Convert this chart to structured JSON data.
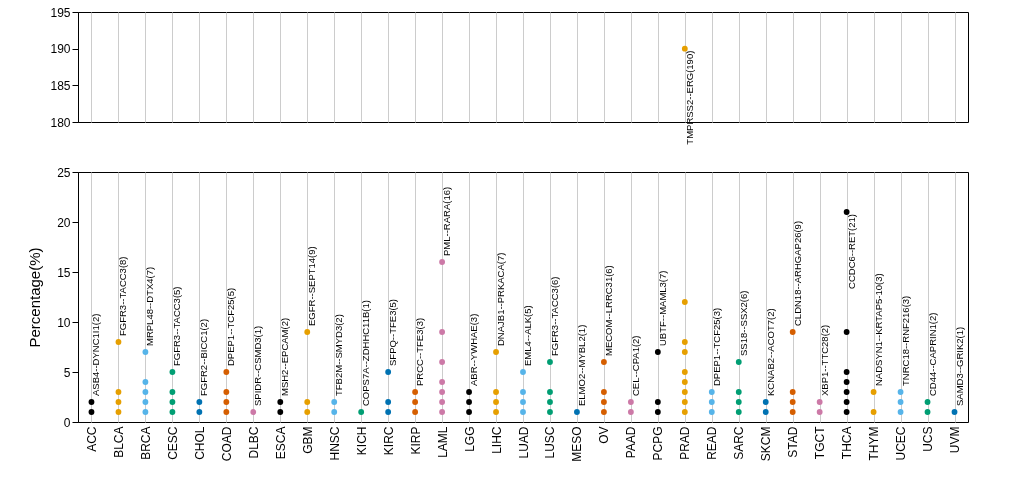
{
  "chart_data": [
    {
      "type": "scatter",
      "categories": [
        "ACC",
        "BLCA",
        "BRCA",
        "CESC",
        "CHOL",
        "COAD",
        "DLBC",
        "ESCA",
        "GBM",
        "HNSC",
        "KICH",
        "KIRC",
        "KIRP",
        "LAML",
        "LGG",
        "LIHC",
        "LUAD",
        "LUSC",
        "MESO",
        "OV",
        "PAAD",
        "PCPG",
        "PRAD",
        "READ",
        "SARC",
        "SKCM",
        "STAD",
        "TGCT",
        "THCA",
        "THYM",
        "UCEC",
        "UCS",
        "UVM"
      ],
      "ylim": [
        180,
        195
      ],
      "yticks": [
        180,
        185,
        190,
        195
      ],
      "grid": "x",
      "marker": "circle",
      "tick_labels": "y",
      "series": [
        {
          "color": "#e69f00",
          "x": [
            "PRAD"
          ],
          "values": [
            190
          ]
        }
      ],
      "annotations": [
        {
          "text": "TMPRSS2--ERG(190)",
          "x": "PRAD",
          "y": 190
        }
      ]
    },
    {
      "type": "scatter",
      "categories": [
        "ACC",
        "BLCA",
        "BRCA",
        "CESC",
        "CHOL",
        "COAD",
        "DLBC",
        "ESCA",
        "GBM",
        "HNSC",
        "KICH",
        "KIRC",
        "KIRP",
        "LAML",
        "LGG",
        "LIHC",
        "LUAD",
        "LUSC",
        "MESO",
        "OV",
        "PAAD",
        "PCPG",
        "PRAD",
        "READ",
        "SARC",
        "SKCM",
        "STAD",
        "TGCT",
        "THCA",
        "THYM",
        "UCEC",
        "UCS",
        "UVM"
      ],
      "ylabel": "Percentage(%)",
      "ylim": [
        0,
        25
      ],
      "yticks": [
        0,
        5,
        10,
        15,
        20,
        25
      ],
      "grid": "x",
      "marker": "circle",
      "series": [
        {
          "color": "#000000",
          "x": [
            "ACC",
            "ACC"
          ],
          "values": [
            1,
            2
          ]
        },
        {
          "color": "#e69f00",
          "x": [
            "BLCA",
            "BLCA",
            "BLCA",
            "BLCA"
          ],
          "values": [
            1,
            2,
            3,
            8
          ]
        },
        {
          "color": "#56b4e9",
          "x": [
            "BRCA",
            "BRCA",
            "BRCA",
            "BRCA",
            "BRCA"
          ],
          "values": [
            1,
            2,
            3,
            4,
            7
          ]
        },
        {
          "color": "#009e73",
          "x": [
            "CESC",
            "CESC",
            "CESC",
            "CESC"
          ],
          "values": [
            1,
            2,
            3,
            5
          ]
        },
        {
          "color": "#0072b2",
          "x": [
            "CHOL",
            "CHOL"
          ],
          "values": [
            1,
            2
          ]
        },
        {
          "color": "#d55e00",
          "x": [
            "COAD",
            "COAD",
            "COAD",
            "COAD"
          ],
          "values": [
            1,
            2,
            3,
            5
          ]
        },
        {
          "color": "#cc79a7",
          "x": [
            "DLBC"
          ],
          "values": [
            1
          ]
        },
        {
          "color": "#000000",
          "x": [
            "ESCA",
            "ESCA"
          ],
          "values": [
            1,
            2
          ]
        },
        {
          "color": "#e69f00",
          "x": [
            "GBM",
            "GBM",
            "GBM"
          ],
          "values": [
            1,
            2,
            9
          ]
        },
        {
          "color": "#56b4e9",
          "x": [
            "HNSC",
            "HNSC"
          ],
          "values": [
            1,
            2
          ]
        },
        {
          "color": "#009e73",
          "x": [
            "KICH"
          ],
          "values": [
            1
          ]
        },
        {
          "color": "#0072b2",
          "x": [
            "KIRC",
            "KIRC",
            "KIRC"
          ],
          "values": [
            1,
            2,
            5
          ]
        },
        {
          "color": "#d55e00",
          "x": [
            "KIRP",
            "KIRP",
            "KIRP"
          ],
          "values": [
            1,
            2,
            3
          ]
        },
        {
          "color": "#cc79a7",
          "x": [
            "LAML",
            "LAML",
            "LAML",
            "LAML",
            "LAML",
            "LAML",
            "LAML"
          ],
          "values": [
            1,
            2,
            3,
            4,
            6,
            9,
            16
          ]
        },
        {
          "color": "#000000",
          "x": [
            "LGG",
            "LGG",
            "LGG"
          ],
          "values": [
            1,
            2,
            3
          ]
        },
        {
          "color": "#e69f00",
          "x": [
            "LIHC",
            "LIHC",
            "LIHC",
            "LIHC"
          ],
          "values": [
            1,
            2,
            3,
            7
          ]
        },
        {
          "color": "#56b4e9",
          "x": [
            "LUAD",
            "LUAD",
            "LUAD",
            "LUAD"
          ],
          "values": [
            1,
            2,
            3,
            5
          ]
        },
        {
          "color": "#009e73",
          "x": [
            "LUSC",
            "LUSC",
            "LUSC",
            "LUSC"
          ],
          "values": [
            1,
            2,
            3,
            6
          ]
        },
        {
          "color": "#0072b2",
          "x": [
            "MESO"
          ],
          "values": [
            1
          ]
        },
        {
          "color": "#d55e00",
          "x": [
            "OV",
            "OV",
            "OV",
            "OV"
          ],
          "values": [
            1,
            2,
            3,
            6
          ]
        },
        {
          "color": "#cc79a7",
          "x": [
            "PAAD",
            "PAAD"
          ],
          "values": [
            1,
            2
          ]
        },
        {
          "color": "#000000",
          "x": [
            "PCPG",
            "PCPG",
            "PCPG"
          ],
          "values": [
            1,
            2,
            7
          ]
        },
        {
          "color": "#e69f00",
          "x": [
            "PRAD",
            "PRAD",
            "PRAD",
            "PRAD",
            "PRAD",
            "PRAD",
            "PRAD",
            "PRAD"
          ],
          "values": [
            1,
            2,
            3,
            4,
            5,
            7,
            8,
            12
          ]
        },
        {
          "color": "#56b4e9",
          "x": [
            "READ",
            "READ",
            "READ"
          ],
          "values": [
            1,
            2,
            3
          ]
        },
        {
          "color": "#009e73",
          "x": [
            "SARC",
            "SARC",
            "SARC",
            "SARC"
          ],
          "values": [
            1,
            2,
            3,
            6
          ]
        },
        {
          "color": "#0072b2",
          "x": [
            "SKCM",
            "SKCM"
          ],
          "values": [
            1,
            2
          ]
        },
        {
          "color": "#d55e00",
          "x": [
            "STAD",
            "STAD",
            "STAD",
            "STAD"
          ],
          "values": [
            1,
            2,
            3,
            9
          ]
        },
        {
          "color": "#cc79a7",
          "x": [
            "TGCT",
            "TGCT"
          ],
          "values": [
            1,
            2
          ]
        },
        {
          "color": "#000000",
          "x": [
            "THCA",
            "THCA",
            "THCA",
            "THCA",
            "THCA",
            "THCA",
            "THCA"
          ],
          "values": [
            1,
            2,
            3,
            4,
            5,
            9,
            21
          ]
        },
        {
          "color": "#e69f00",
          "x": [
            "THYM",
            "THYM"
          ],
          "values": [
            1,
            3
          ]
        },
        {
          "color": "#56b4e9",
          "x": [
            "UCEC",
            "UCEC",
            "UCEC"
          ],
          "values": [
            1,
            2,
            3
          ]
        },
        {
          "color": "#009e73",
          "x": [
            "UCS",
            "UCS"
          ],
          "values": [
            1,
            2
          ]
        },
        {
          "color": "#0072b2",
          "x": [
            "UVM"
          ],
          "values": [
            1
          ]
        }
      ],
      "annotations": [
        {
          "text": "ASB4--DYNC1I1(2)",
          "x": "ACC",
          "y": 2
        },
        {
          "text": "FGFR3--TACC3(8)",
          "x": "BLCA",
          "y": 8
        },
        {
          "text": "MRPL48--DTX4(7)",
          "x": "BRCA",
          "y": 7
        },
        {
          "text": "FGFR3--TACC3(5)",
          "x": "CESC",
          "y": 5
        },
        {
          "text": "FGFR2--BICC1(2)",
          "x": "CHOL",
          "y": 2
        },
        {
          "text": "DPEP1--TCF25(5)",
          "x": "COAD",
          "y": 5
        },
        {
          "text": "SPIDR--CSMD3(1)",
          "x": "DLBC",
          "y": 1
        },
        {
          "text": "MSH2--EPCAM(2)",
          "x": "ESCA",
          "y": 2
        },
        {
          "text": "EGFR--SEPT14(9)",
          "x": "GBM",
          "y": 9
        },
        {
          "text": "TFB2M--SMYD3(2)",
          "x": "HNSC",
          "y": 2
        },
        {
          "text": "COPS7A--ZDHHC11B(1)",
          "x": "KICH",
          "y": 1
        },
        {
          "text": "SFPQ--TFE3(5)",
          "x": "KIRC",
          "y": 5
        },
        {
          "text": "PRCC--TFE3(3)",
          "x": "KIRP",
          "y": 3
        },
        {
          "text": "PML--RARA(16)",
          "x": "LAML",
          "y": 16
        },
        {
          "text": "ABR--YWHAE(3)",
          "x": "LGG",
          "y": 3
        },
        {
          "text": "DNAJB1--PRKACA(7)",
          "x": "LIHC",
          "y": 7
        },
        {
          "text": "EML4--ALK(5)",
          "x": "LUAD",
          "y": 5
        },
        {
          "text": "FGFR3--TACC3(6)",
          "x": "LUSC",
          "y": 6
        },
        {
          "text": "ELMO2--MYBL2(1)",
          "x": "MESO",
          "y": 1
        },
        {
          "text": "MECOM--LRRC31(6)",
          "x": "OV",
          "y": 6
        },
        {
          "text": "CEL--CPA1(2)",
          "x": "PAAD",
          "y": 2
        },
        {
          "text": "UBTF--MAML3(7)",
          "x": "PCPG",
          "y": 7
        },
        {
          "text": "DPEP1--TCF25(3)",
          "x": "READ",
          "y": 3
        },
        {
          "text": "SS18--SSX2(6)",
          "x": "SARC",
          "y": 6
        },
        {
          "text": "KCNAB2--ACOT7(2)",
          "x": "SKCM",
          "y": 2
        },
        {
          "text": "CLDN18--ARHGAP26(9)",
          "x": "STAD",
          "y": 9
        },
        {
          "text": "XBP1--TTC28(2)",
          "x": "TGCT",
          "y": 2
        },
        {
          "text": "CCDC6--RET(21)",
          "x": "THCA",
          "y": 21
        },
        {
          "text": "NADSYN1--KRTAP5-10(3)",
          "x": "THYM",
          "y": 3
        },
        {
          "text": "TNRC18--RNF216(3)",
          "x": "UCEC",
          "y": 3
        },
        {
          "text": "CD44--CAPRIN1(2)",
          "x": "UCS",
          "y": 2
        },
        {
          "text": "SAMD3--GRIK2(1)",
          "x": "UVM",
          "y": 1
        }
      ]
    }
  ]
}
